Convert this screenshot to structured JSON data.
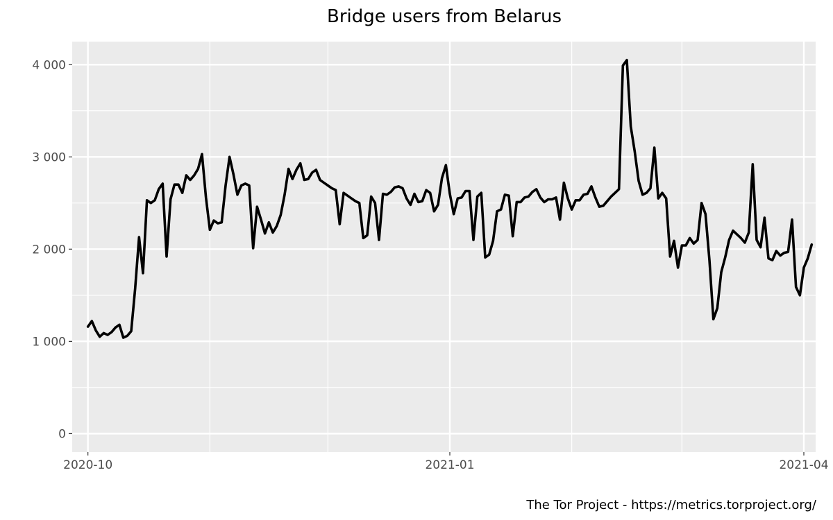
{
  "chart_data": {
    "type": "line",
    "title": "Bridge users from Belarus",
    "xlabel": "",
    "ylabel": "",
    "caption": "The Tor Project - https://metrics.torproject.org/",
    "x_range": [
      "2020-09-27",
      "2021-04-04"
    ],
    "ylim": [
      -200,
      4250
    ],
    "grid": true,
    "panel_background": "#ebebeb",
    "grid_color": "#ffffff",
    "line_color": "#000000",
    "x_ticks": [
      {
        "date": "2020-10-01",
        "label": "2020-10"
      },
      {
        "date": "2021-01-01",
        "label": "2021-01"
      },
      {
        "date": "2021-04-01",
        "label": "2021-04"
      }
    ],
    "x_minor_ticks": [
      "2020-11-01",
      "2020-12-01",
      "2021-02-01",
      "2021-03-01"
    ],
    "y_ticks": [
      {
        "value": 0,
        "label": "0"
      },
      {
        "value": 1000,
        "label": "1 000"
      },
      {
        "value": 2000,
        "label": "2 000"
      },
      {
        "value": 3000,
        "label": "3 000"
      },
      {
        "value": 4000,
        "label": "4 000"
      }
    ],
    "series": [
      {
        "x_start": "2020-10-01",
        "x_step_days": 1,
        "values": [
          1160,
          1220,
          1120,
          1050,
          1090,
          1070,
          1100,
          1150,
          1180,
          1040,
          1060,
          1110,
          1570,
          2130,
          1740,
          2530,
          2500,
          2530,
          2650,
          2710,
          1920,
          2540,
          2700,
          2700,
          2610,
          2800,
          2750,
          2800,
          2870,
          3030,
          2560,
          2210,
          2310,
          2280,
          2290,
          2690,
          3000,
          2810,
          2590,
          2690,
          2710,
          2690,
          2010,
          2460,
          2320,
          2170,
          2290,
          2180,
          2250,
          2370,
          2590,
          2870,
          2760,
          2860,
          2930,
          2750,
          2760,
          2830,
          2860,
          2750,
          2720,
          2690,
          2660,
          2640,
          2270,
          2610,
          2580,
          2550,
          2520,
          2500,
          2120,
          2150,
          2570,
          2500,
          2100,
          2600,
          2590,
          2620,
          2670,
          2680,
          2660,
          2550,
          2480,
          2600,
          2510,
          2520,
          2640,
          2610,
          2410,
          2480,
          2770,
          2910,
          2600,
          2380,
          2550,
          2560,
          2630,
          2630,
          2100,
          2570,
          2610,
          1910,
          1940,
          2090,
          2410,
          2430,
          2590,
          2580,
          2140,
          2510,
          2510,
          2560,
          2570,
          2620,
          2650,
          2560,
          2510,
          2540,
          2540,
          2560,
          2320,
          2720,
          2550,
          2430,
          2530,
          2530,
          2590,
          2600,
          2680,
          2560,
          2460,
          2470,
          2520,
          2570,
          2610,
          2650,
          3990,
          4050,
          3330,
          3060,
          2740,
          2590,
          2610,
          2660,
          3100,
          2550,
          2610,
          2550,
          1920,
          2090,
          1800,
          2040,
          2040,
          2120,
          2060,
          2100,
          2500,
          2380,
          1880,
          1240,
          1360,
          1750,
          1910,
          2100,
          2200,
          2160,
          2120,
          2070,
          2180,
          2920,
          2100,
          2020,
          2340,
          1900,
          1880,
          1980,
          1930,
          1960,
          1970,
          2320,
          1590,
          1500,
          1800,
          1900,
          2050
        ]
      }
    ]
  }
}
